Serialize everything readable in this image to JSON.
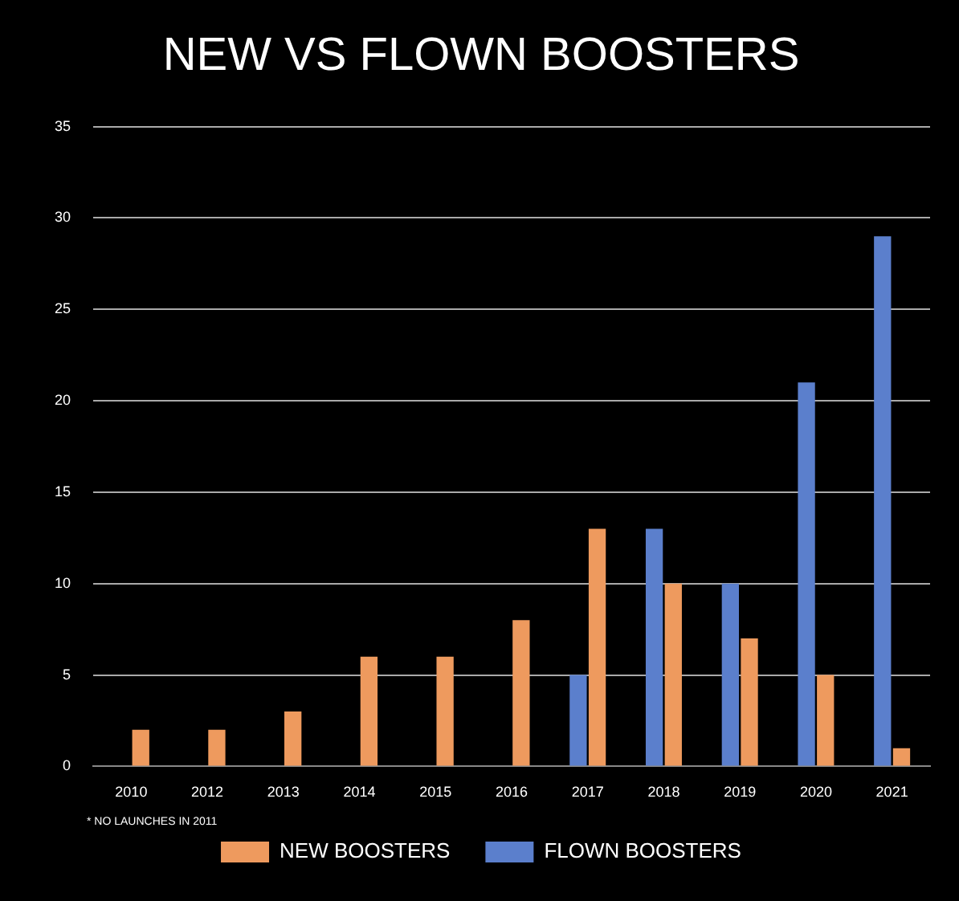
{
  "chart_data": {
    "type": "bar",
    "title": "NEW VS FLOWN BOOSTERS",
    "categories": [
      "2010",
      "2012",
      "2013",
      "2014",
      "2015",
      "2016",
      "2017",
      "2018",
      "2019",
      "2020",
      "2021"
    ],
    "series": [
      {
        "name": "FLOWN BOOSTERS",
        "color": "#5b7fcc",
        "values": [
          null,
          null,
          null,
          null,
          null,
          null,
          5,
          13,
          10,
          21,
          29
        ]
      },
      {
        "name": "NEW BOOSTERS",
        "color": "#ee9a5e",
        "values": [
          2,
          2,
          3,
          6,
          6,
          8,
          13,
          10,
          7,
          5,
          1
        ]
      }
    ],
    "ylim": [
      0,
      35
    ],
    "yticks": [
      0,
      5,
      10,
      15,
      20,
      25,
      30,
      35
    ],
    "grid": "y",
    "legend": "bottom",
    "annotations": [
      "* NO LAUNCHES IN 2011"
    ]
  }
}
